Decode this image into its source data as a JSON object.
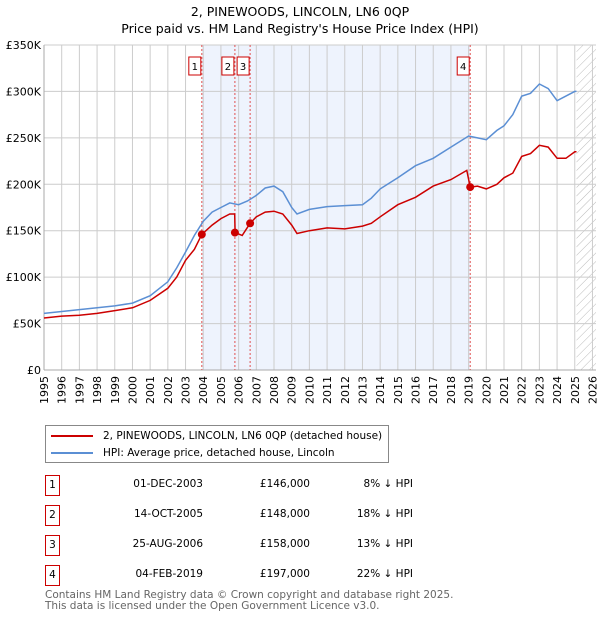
{
  "chart_data": {
    "type": "line",
    "title": "2, PINEWOODS, LINCOLN, LN6 0QP",
    "subtitle": "Price paid vs. HM Land Registry's House Price Index (HPI)",
    "xlim": [
      1995,
      2026
    ],
    "ylim": [
      0,
      350000
    ],
    "x_ticks": [
      "1995",
      "1996",
      "1997",
      "1998",
      "1999",
      "2000",
      "2001",
      "2002",
      "2003",
      "2004",
      "2005",
      "2006",
      "2007",
      "2008",
      "2009",
      "2010",
      "2011",
      "2012",
      "2013",
      "2014",
      "2015",
      "2016",
      "2017",
      "2018",
      "2019",
      "2020",
      "2021",
      "2022",
      "2023",
      "2024",
      "2025",
      "2026"
    ],
    "y_ticks": [
      {
        "v": 0,
        "label": "£0"
      },
      {
        "v": 50000,
        "label": "£50K"
      },
      {
        "v": 100000,
        "label": "£100K"
      },
      {
        "v": 150000,
        "label": "£150K"
      },
      {
        "v": 200000,
        "label": "£200K"
      },
      {
        "v": 250000,
        "label": "£250K"
      },
      {
        "v": 300000,
        "label": "£300K"
      },
      {
        "v": 350000,
        "label": "£350K"
      }
    ],
    "grid": true,
    "shaded_range": [
      2003.92,
      2019.09
    ],
    "hatched_from": 2025.1,
    "series": [
      {
        "name": "2, PINEWOODS, LINCOLN, LN6 0QP (detached house)",
        "color": "#cc0000",
        "x": [
          1995,
          1996,
          1997,
          1998,
          1999,
          2000,
          2001,
          2002,
          2002.5,
          2003,
          2003.5,
          2003.92,
          2004.5,
          2005,
          2005.5,
          2005.78,
          2005.8,
          2006.2,
          2006.65,
          2007,
          2007.5,
          2008,
          2008.5,
          2009,
          2009.3,
          2010,
          2011,
          2012,
          2013,
          2013.5,
          2014,
          2015,
          2016,
          2017,
          2018,
          2018.9,
          2019.09,
          2019.5,
          2020,
          2020.6,
          2021,
          2021.5,
          2022,
          2022.5,
          2023,
          2023.5,
          2024,
          2024.5,
          2025,
          2025.1
        ],
        "y": [
          56000,
          58000,
          59000,
          61000,
          64000,
          67000,
          75000,
          88000,
          100000,
          118000,
          130000,
          146000,
          156000,
          163000,
          168000,
          168000,
          148000,
          145000,
          158000,
          165000,
          170000,
          171000,
          168000,
          156000,
          147000,
          150000,
          153000,
          152000,
          155000,
          158000,
          165000,
          178000,
          186000,
          198000,
          205000,
          215000,
          197000,
          198000,
          195000,
          200000,
          207000,
          212000,
          230000,
          233000,
          242000,
          240000,
          228000,
          228000,
          235000,
          235000
        ]
      },
      {
        "name": "HPI: Average price, detached house, Lincoln",
        "color": "#5b8fd4",
        "x": [
          1995,
          1996,
          1997,
          1998,
          1999,
          2000,
          2001,
          2002,
          2002.5,
          2003,
          2003.5,
          2004,
          2004.5,
          2005,
          2005.5,
          2006,
          2006.5,
          2007,
          2007.5,
          2008,
          2008.5,
          2009,
          2009.3,
          2010,
          2011,
          2012,
          2013,
          2013.5,
          2014,
          2015,
          2016,
          2017,
          2018,
          2019,
          2019.5,
          2020,
          2020.6,
          2021,
          2021.5,
          2022,
          2022.5,
          2023,
          2023.5,
          2024,
          2024.5,
          2025,
          2025.1
        ],
        "y": [
          61000,
          63000,
          65000,
          67000,
          69000,
          72000,
          80000,
          95000,
          110000,
          127000,
          145000,
          160000,
          170000,
          175000,
          180000,
          178000,
          182000,
          188000,
          196000,
          198000,
          192000,
          175000,
          168000,
          173000,
          176000,
          177000,
          178000,
          185000,
          195000,
          207000,
          220000,
          228000,
          240000,
          252000,
          250000,
          248000,
          258000,
          263000,
          275000,
          295000,
          298000,
          308000,
          303000,
          290000,
          295000,
          300000,
          300000
        ]
      }
    ],
    "markers": [
      {
        "id": "1",
        "x": 2003.92,
        "y": 146000
      },
      {
        "id": "2",
        "x": 2005.79,
        "y": 148000
      },
      {
        "id": "3",
        "x": 2006.65,
        "y": 158000
      },
      {
        "id": "4",
        "x": 2019.09,
        "y": 197000
      }
    ]
  },
  "legend": {
    "property": "2, PINEWOODS, LINCOLN, LN6 0QP (detached house)",
    "hpi": "HPI: Average price, detached house, Lincoln"
  },
  "transactions": [
    {
      "n": "1",
      "date": "01-DEC-2003",
      "price": "£146,000",
      "hpi": "8% ↓ HPI"
    },
    {
      "n": "2",
      "date": "14-OCT-2005",
      "price": "£148,000",
      "hpi": "18% ↓ HPI"
    },
    {
      "n": "3",
      "date": "25-AUG-2006",
      "price": "£158,000",
      "hpi": "13% ↓ HPI"
    },
    {
      "n": "4",
      "date": "04-FEB-2019",
      "price": "£197,000",
      "hpi": "22% ↓ HPI"
    }
  ],
  "footer": {
    "line1": "Contains HM Land Registry data © Crown copyright and database right 2025.",
    "line2": "This data is licensed under the Open Government Licence v3.0."
  }
}
